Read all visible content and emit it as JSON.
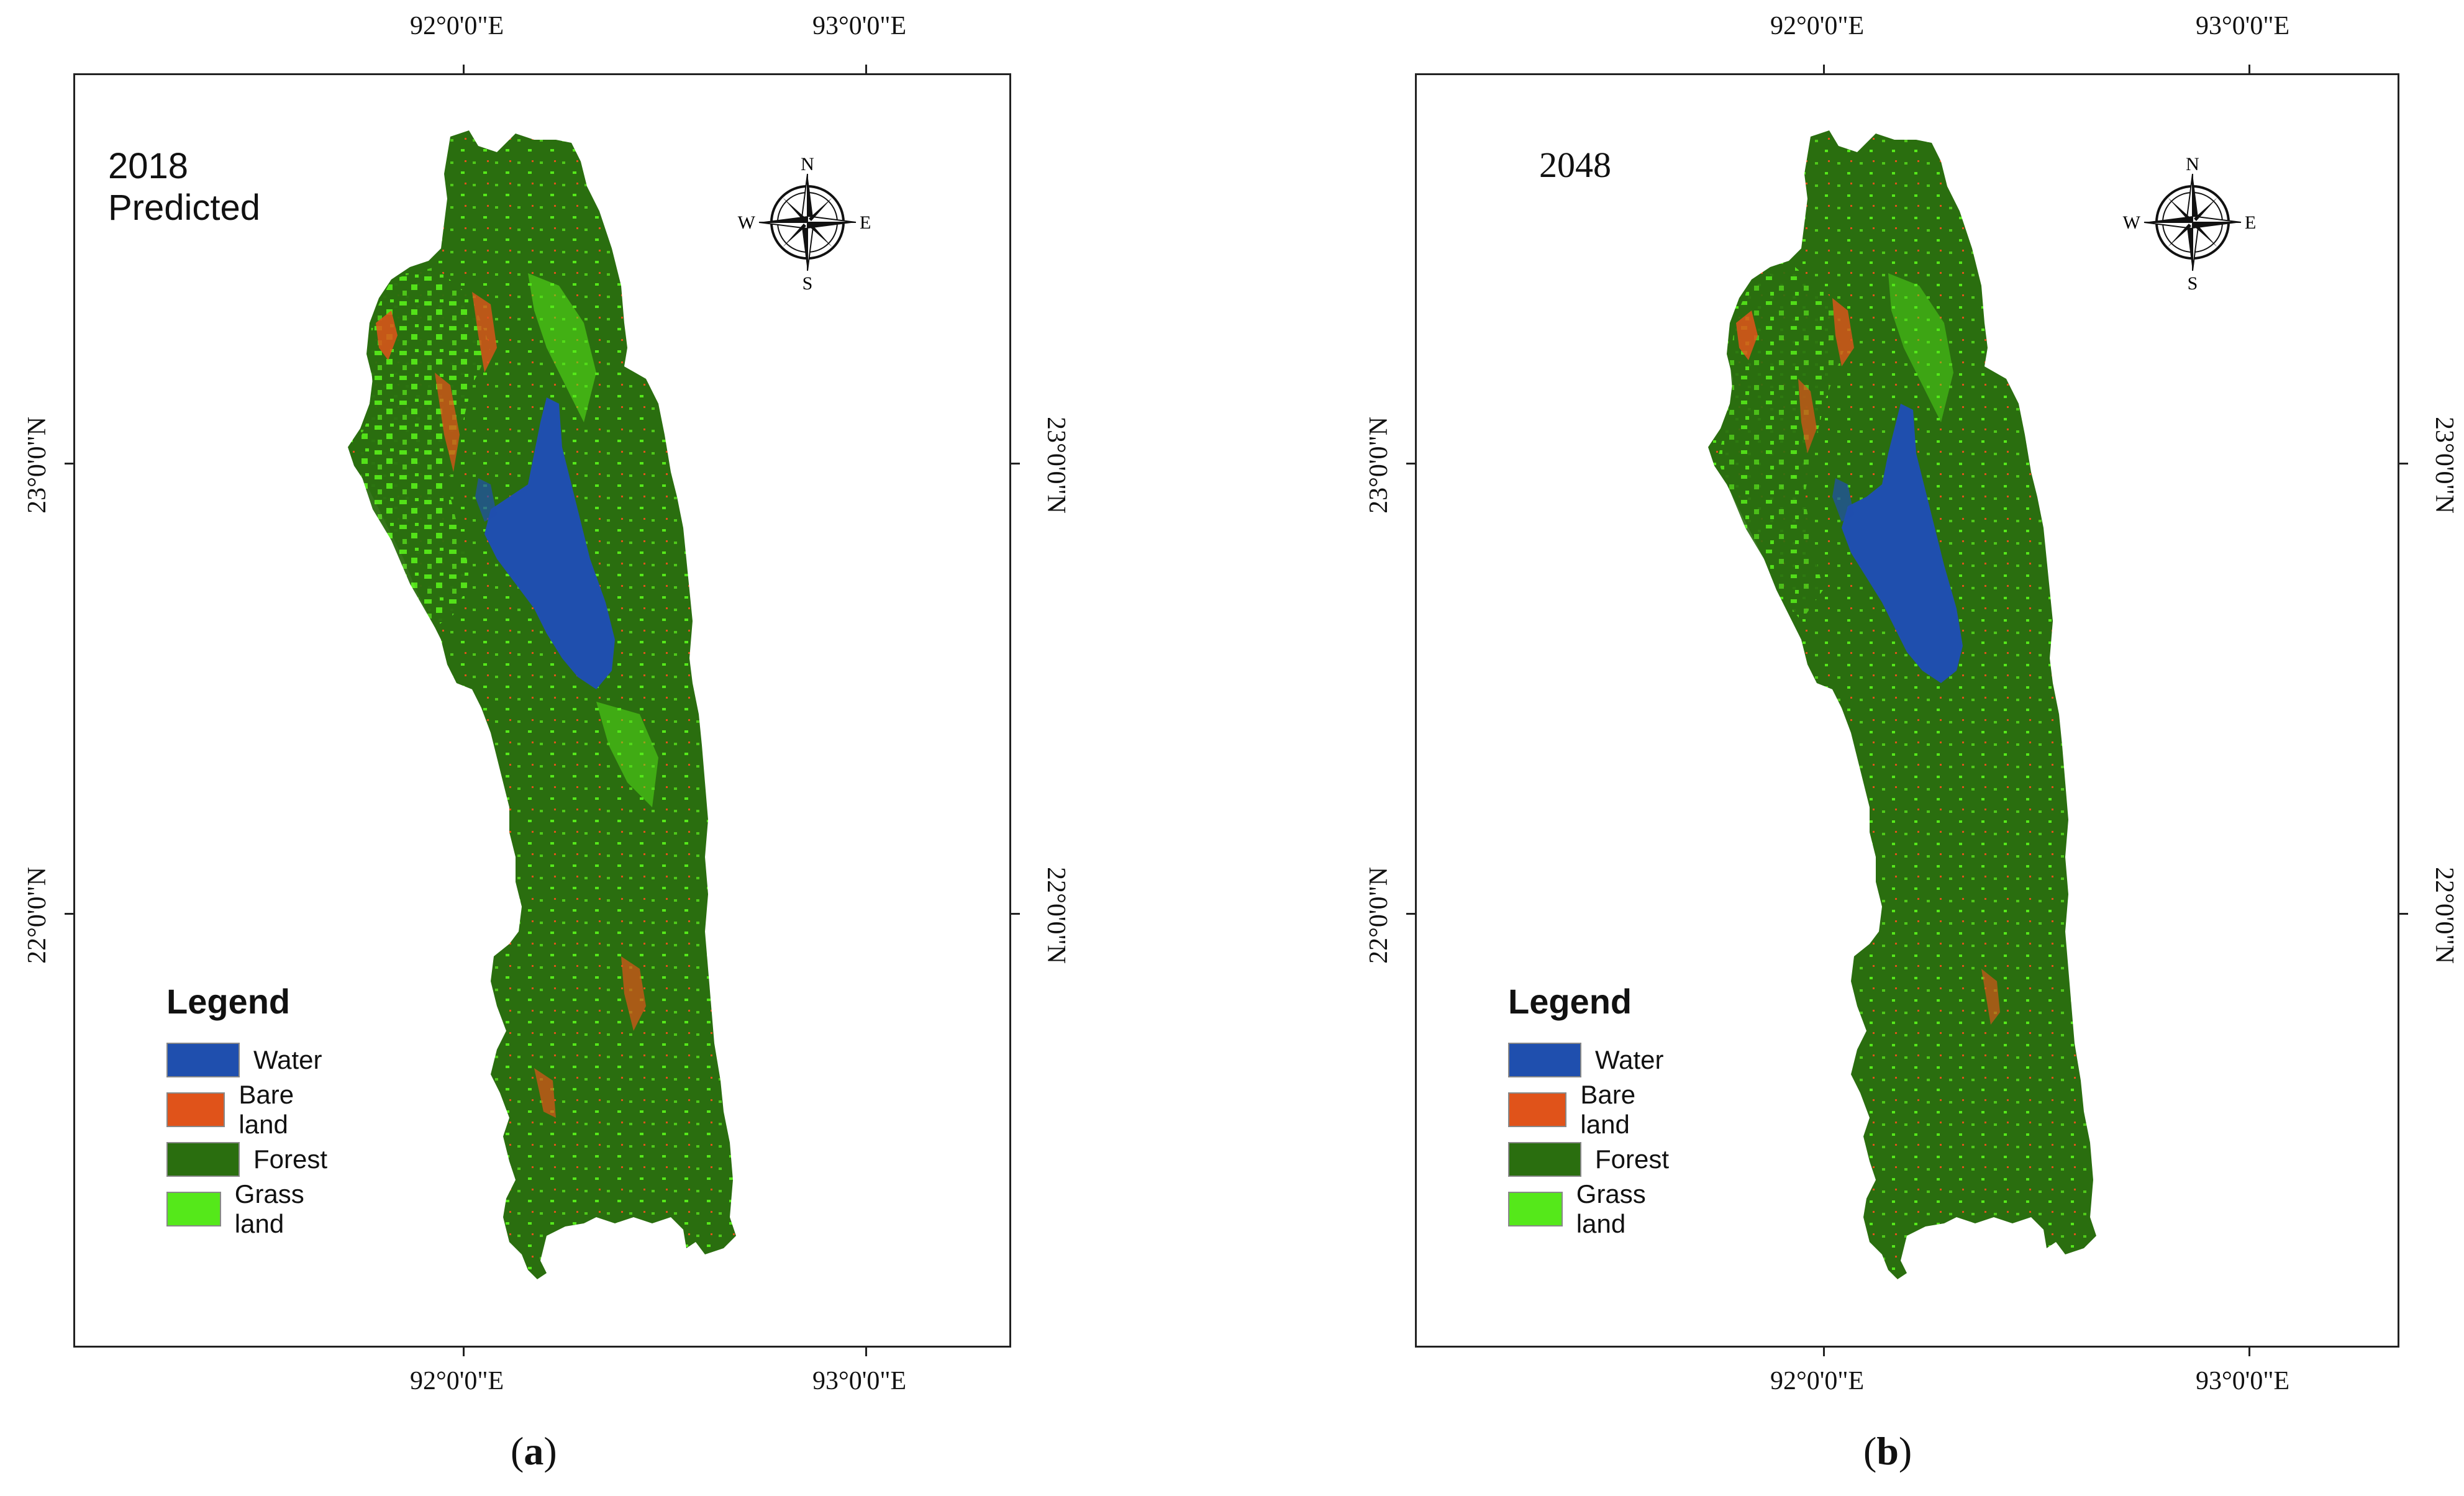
{
  "panels": [
    {
      "title": "2018 Predicted",
      "sub_label": "a",
      "grid_labels": {
        "top_left_lon": "92°0'0\"E",
        "top_right_lon": "93°0'0\"E",
        "bottom_left_lon": "92°0'0\"E",
        "bottom_right_lon": "93°0'0\"E",
        "left_upper_lat": "23°0'0\"N",
        "left_lower_lat": "22°0'0\"N",
        "right_upper_lat": "23°0'0\"N",
        "right_lower_lat": "22°0'0\"N"
      }
    },
    {
      "title": "2048",
      "sub_label": "b",
      "grid_labels": {
        "top_left_lon": "92°0'0\"E",
        "top_right_lon": "93°0'0\"E",
        "bottom_left_lon": "92°0'0\"E",
        "bottom_right_lon": "93°0'0\"E",
        "left_upper_lat": "23°0'0\"N",
        "left_lower_lat": "22°0'0\"N",
        "right_upper_lat": "23°0'0\"N",
        "right_lower_lat": "22°0'0\"N"
      }
    }
  ],
  "compass": {
    "n": "N",
    "s": "S",
    "e": "E",
    "w": "W"
  },
  "legend": {
    "title": "Legend",
    "items": [
      {
        "label": "Water",
        "color": "#1f4fae"
      },
      {
        "label": "Bare land",
        "color": "#e0531a"
      },
      {
        "label": "Forest",
        "color": "#2a6e0f"
      },
      {
        "label": "Grass land",
        "color": "#55e81a"
      }
    ]
  }
}
